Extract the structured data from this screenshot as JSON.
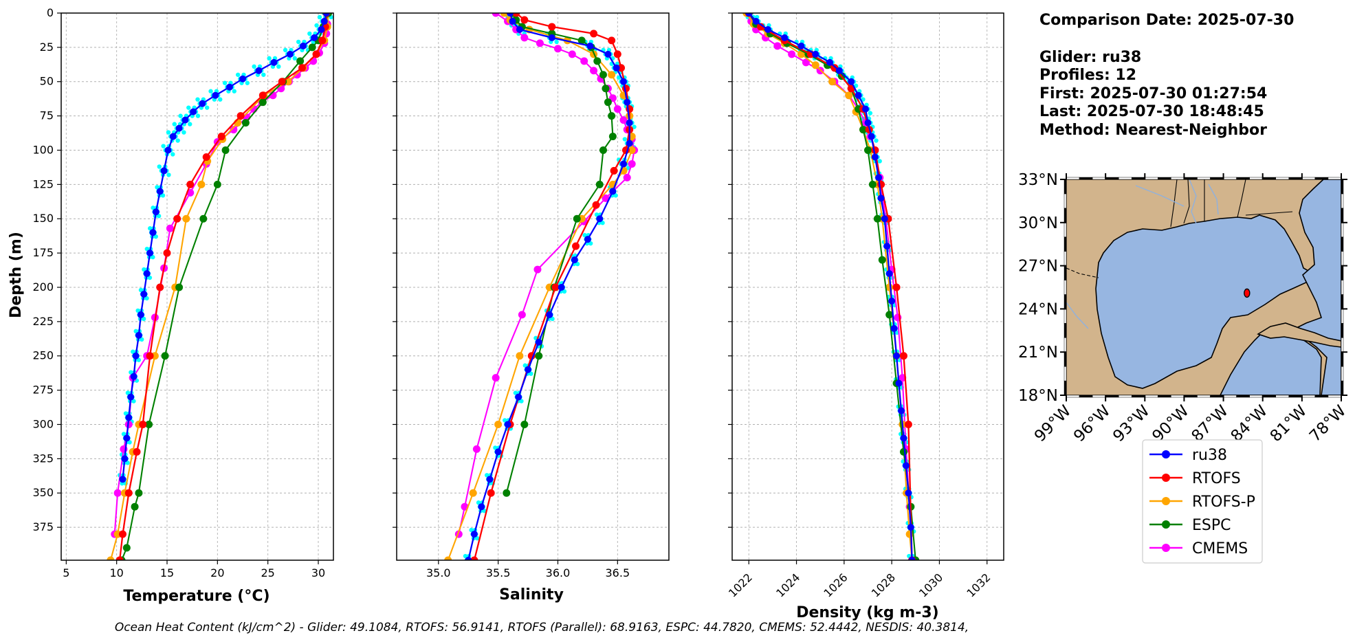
{
  "chart_data": [
    {
      "type": "line",
      "xlabel": "Temperature (°C)",
      "ylabel": "Depth (m)",
      "xlim": [
        4.5,
        31.5
      ],
      "ylim": [
        399,
        0
      ],
      "xticks": [
        "5",
        "10",
        "15",
        "20",
        "25",
        "30"
      ],
      "yticks": [
        "0",
        "25",
        "50",
        "75",
        "100",
        "125",
        "150",
        "175",
        "200",
        "225",
        "250",
        "275",
        "300",
        "325",
        "350",
        "375"
      ],
      "grid": true,
      "series": [
        {
          "name": "ru38",
          "color": "#0000ff",
          "x": [
            30.8,
            30.6,
            30.3,
            29.6,
            28.5,
            27.2,
            25.6,
            24.1,
            22.5,
            21.2,
            19.8,
            18.5,
            17.6,
            16.8,
            16.2,
            15.6,
            15.1,
            14.7,
            14.3,
            13.9,
            13.6,
            13.3,
            13.0,
            12.7,
            12.4,
            12.2,
            11.9,
            11.7,
            11.4,
            11.2,
            11.0,
            10.8,
            10.6
          ],
          "y": [
            0,
            6,
            12,
            18,
            24,
            30,
            36,
            42,
            48,
            54,
            60,
            66,
            72,
            78,
            84,
            90,
            100,
            115,
            130,
            145,
            160,
            175,
            190,
            205,
            220,
            235,
            250,
            265,
            280,
            295,
            310,
            325,
            340
          ]
        },
        {
          "name": "RTOFS",
          "color": "#ff0000",
          "x": [
            30.8,
            30.7,
            30.4,
            29.8,
            28.4,
            26.4,
            24.5,
            22.3,
            20.4,
            18.9,
            17.3,
            16.0,
            15.0,
            14.3,
            13.3,
            12.6,
            12.0,
            11.2,
            10.6,
            10.3
          ],
          "y": [
            0,
            10,
            20,
            30,
            40,
            50,
            60,
            75,
            90,
            105,
            125,
            150,
            175,
            200,
            250,
            300,
            320,
            350,
            380,
            399
          ]
        },
        {
          "name": "RTOFS-P",
          "color": "#ffa500",
          "x": [
            31.0,
            30.9,
            30.6,
            29.8,
            28.5,
            27.0,
            24.6,
            22.0,
            20.5,
            19.0,
            18.4,
            16.9,
            15.8,
            13.8,
            12.2,
            11.6,
            10.8,
            10.1,
            9.4
          ],
          "y": [
            0,
            10,
            20,
            30,
            40,
            50,
            60,
            80,
            92,
            108,
            125,
            150,
            200,
            250,
            300,
            320,
            350,
            380,
            399
          ]
        },
        {
          "name": "ESPC",
          "color": "#008000",
          "x": [
            31.0,
            30.5,
            30.0,
            29.4,
            28.2,
            26.5,
            24.5,
            22.8,
            20.8,
            20.0,
            18.6,
            16.2,
            14.8,
            13.2,
            12.2,
            11.8,
            11.0,
            10.5
          ],
          "y": [
            0,
            10,
            20,
            25,
            35,
            50,
            65,
            80,
            100,
            125,
            150,
            200,
            250,
            300,
            350,
            360,
            390,
            399
          ]
        },
        {
          "name": "CMEMS",
          "color": "#ff00ff",
          "x": [
            31.0,
            30.9,
            30.8,
            30.6,
            30.1,
            29.5,
            28.7,
            27.9,
            27.1,
            26.3,
            25.5,
            24.4,
            23.6,
            22.9,
            21.6,
            20.0,
            18.9,
            17.3,
            15.3,
            14.7,
            13.8,
            13.0,
            11.6,
            11.2,
            10.7,
            10.1,
            9.8
          ],
          "y": [
            0,
            8,
            15,
            22,
            29,
            35,
            40,
            45,
            50,
            55,
            60,
            65,
            70,
            76,
            85,
            94,
            110,
            131,
            157,
            186,
            222,
            250,
            266,
            300,
            318,
            350,
            380
          ]
        }
      ]
    },
    {
      "type": "line",
      "xlabel": "Salinity",
      "xlim": [
        34.65,
        36.93
      ],
      "ylim": [
        399,
        0
      ],
      "xticks": [
        "35.0",
        "35.5",
        "36.0",
        "36.5"
      ],
      "grid": true,
      "series": [
        {
          "name": "ru38",
          "color": "#0000ff",
          "x": [
            35.6,
            35.62,
            35.68,
            35.95,
            36.27,
            36.42,
            36.49,
            36.55,
            36.58,
            36.6,
            36.6,
            36.55,
            36.46,
            36.35,
            36.25,
            36.14,
            36.03,
            35.93,
            35.84,
            35.75,
            35.67,
            35.58,
            35.5,
            35.43,
            35.36,
            35.3,
            35.25
          ],
          "y": [
            0,
            6,
            12,
            18,
            24,
            30,
            40,
            50,
            65,
            80,
            95,
            110,
            130,
            150,
            165,
            180,
            200,
            220,
            240,
            260,
            280,
            300,
            320,
            340,
            360,
            380,
            399
          ]
        },
        {
          "name": "RTOFS",
          "color": "#ff0000",
          "x": [
            35.65,
            35.72,
            35.95,
            36.3,
            36.45,
            36.5,
            36.53,
            36.57,
            36.6,
            36.6,
            36.57,
            36.47,
            36.32,
            36.15,
            35.98,
            35.78,
            35.6,
            35.44,
            35.3
          ],
          "y": [
            0,
            5,
            10,
            15,
            20,
            30,
            40,
            55,
            70,
            85,
            100,
            115,
            140,
            170,
            200,
            250,
            300,
            350,
            399
          ]
        },
        {
          "name": "RTOFS-P",
          "color": "#ffa500",
          "x": [
            35.55,
            35.6,
            35.76,
            36.08,
            36.3,
            36.45,
            36.55,
            36.6,
            36.62,
            36.62,
            36.55,
            36.46,
            36.2,
            35.93,
            35.68,
            35.5,
            35.29,
            35.08
          ],
          "y": [
            0,
            5,
            12,
            20,
            30,
            45,
            60,
            75,
            90,
            100,
            115,
            125,
            150,
            200,
            250,
            300,
            350,
            399
          ]
        },
        {
          "name": "ESPC",
          "color": "#008000",
          "x": [
            35.62,
            35.65,
            35.7,
            35.95,
            36.2,
            36.28,
            36.33,
            36.38,
            36.4,
            36.42,
            36.45,
            36.46,
            36.38,
            36.35,
            36.16,
            35.97,
            35.84,
            35.72,
            35.57
          ],
          "y": [
            0,
            5,
            10,
            15,
            20,
            25,
            35,
            45,
            55,
            65,
            75,
            90,
            100,
            125,
            150,
            200,
            250,
            300,
            350
          ]
        },
        {
          "name": "CMEMS",
          "color": "#ff00ff",
          "x": [
            35.48,
            35.58,
            35.65,
            35.72,
            35.85,
            36.0,
            36.12,
            36.22,
            36.3,
            36.36,
            36.42,
            36.46,
            36.5,
            36.55,
            36.58,
            36.62,
            36.64,
            36.62,
            36.58,
            36.4,
            36.22,
            35.83,
            35.7,
            35.48,
            35.32,
            35.22,
            35.17
          ],
          "y": [
            0,
            6,
            12,
            18,
            22,
            26,
            30,
            35,
            42,
            48,
            55,
            62,
            70,
            78,
            85,
            92,
            100,
            110,
            120,
            135,
            152,
            187,
            220,
            266,
            318,
            360,
            380
          ]
        }
      ]
    },
    {
      "type": "line",
      "xlabel": "Density (kg m-3)",
      "xlim": [
        1021.3,
        1032.7
      ],
      "ylim": [
        399,
        0
      ],
      "xticks": [
        "1022",
        "1024",
        "1026",
        "1028",
        "1030",
        "1032"
      ],
      "grid": true,
      "series": [
        {
          "name": "ru38",
          "color": "#0000ff",
          "x": [
            1022.0,
            1022.3,
            1022.8,
            1023.5,
            1024.2,
            1024.8,
            1025.4,
            1025.8,
            1026.3,
            1026.6,
            1026.9,
            1027.0,
            1027.15,
            1027.3,
            1027.45,
            1027.55,
            1027.7,
            1027.8,
            1027.9,
            1028.0,
            1028.1,
            1028.2,
            1028.3,
            1028.4,
            1028.5,
            1028.6,
            1028.7,
            1028.8,
            1028.85
          ],
          "y": [
            0,
            6,
            12,
            18,
            24,
            30,
            36,
            42,
            50,
            60,
            70,
            80,
            90,
            105,
            120,
            135,
            150,
            170,
            190,
            210,
            230,
            250,
            270,
            290,
            310,
            330,
            350,
            375,
            399
          ]
        },
        {
          "name": "RTOFS",
          "color": "#ff0000",
          "x": [
            1022.0,
            1022.5,
            1023.5,
            1024.6,
            1025.6,
            1026.3,
            1026.8,
            1027.05,
            1027.3,
            1027.55,
            1027.85,
            1028.2,
            1028.5,
            1028.7,
            1028.85
          ],
          "y": [
            0,
            10,
            20,
            30,
            40,
            55,
            70,
            85,
            100,
            125,
            150,
            200,
            250,
            300,
            399
          ]
        },
        {
          "name": "RTOFS-P",
          "color": "#ffa500",
          "x": [
            1021.9,
            1022.2,
            1022.8,
            1023.5,
            1024.2,
            1024.8,
            1025.5,
            1026.2,
            1026.5,
            1026.8,
            1027.1,
            1027.4,
            1027.6,
            1027.9,
            1028.2,
            1028.45,
            1028.62,
            1028.75,
            1028.85
          ],
          "y": [
            0,
            8,
            15,
            22,
            30,
            38,
            50,
            60,
            72,
            85,
            100,
            125,
            150,
            200,
            250,
            300,
            350,
            380,
            399
          ]
        },
        {
          "name": "ESPC",
          "color": "#008000",
          "x": [
            1022.0,
            1022.3,
            1022.9,
            1023.6,
            1024.5,
            1025.3,
            1025.9,
            1026.3,
            1026.6,
            1026.8,
            1027.0,
            1027.2,
            1027.4,
            1027.6,
            1027.9,
            1028.2,
            1028.5,
            1028.8,
            1029.0
          ],
          "y": [
            0,
            8,
            15,
            22,
            30,
            38,
            46,
            55,
            70,
            85,
            100,
            125,
            150,
            180,
            220,
            270,
            320,
            360,
            399
          ]
        },
        {
          "name": "CMEMS",
          "color": "#ff00ff",
          "x": [
            1022.0,
            1022.1,
            1022.3,
            1022.7,
            1023.2,
            1023.8,
            1024.4,
            1025.0,
            1025.6,
            1026.2,
            1026.6,
            1026.9,
            1027.1,
            1027.3,
            1027.5,
            1027.75,
            1028.0,
            1028.25,
            1028.45,
            1028.6,
            1028.75,
            1028.85
          ],
          "y": [
            0,
            6,
            12,
            18,
            24,
            30,
            36,
            42,
            50,
            60,
            70,
            80,
            90,
            100,
            120,
            150,
            187,
            222,
            266,
            318,
            360,
            399
          ]
        }
      ]
    }
  ],
  "info": {
    "comparison_date": "Comparison Date: 2025-07-30",
    "glider": "Glider: ru38",
    "profiles": "Profiles: 12",
    "first": "First: 2025-07-30 01:27:54",
    "last": "Last: 2025-07-30 18:48:45",
    "method": "Method: Nearest-Neighbor"
  },
  "map": {
    "lat_ticks": [
      "33°N",
      "30°N",
      "27°N",
      "24°N",
      "21°N",
      "18°N"
    ],
    "lon_ticks": [
      "99°W",
      "96°W",
      "93°W",
      "90°W",
      "87°W",
      "84°W",
      "81°W",
      "78°W"
    ],
    "land_color": "#d2b48c",
    "ocean_color": "#97b6e1",
    "glider_lon": -85.2,
    "glider_lat": 25.1
  },
  "legend": {
    "items": [
      {
        "label": "ru38",
        "color": "#0000ff"
      },
      {
        "label": "RTOFS",
        "color": "#ff0000"
      },
      {
        "label": "RTOFS-P",
        "color": "#ffa500"
      },
      {
        "label": "ESPC",
        "color": "#008000"
      },
      {
        "label": "CMEMS",
        "color": "#ff00ff"
      }
    ]
  },
  "footer": "Ocean Heat Content (kJ/cm^2) - Glider: 49.1084,  RTOFS: 56.9141,  RTOFS (Parallel): 68.9163,  ESPC: 44.7820,  CMEMS: 52.4442,  NESDIS: 40.3814,"
}
